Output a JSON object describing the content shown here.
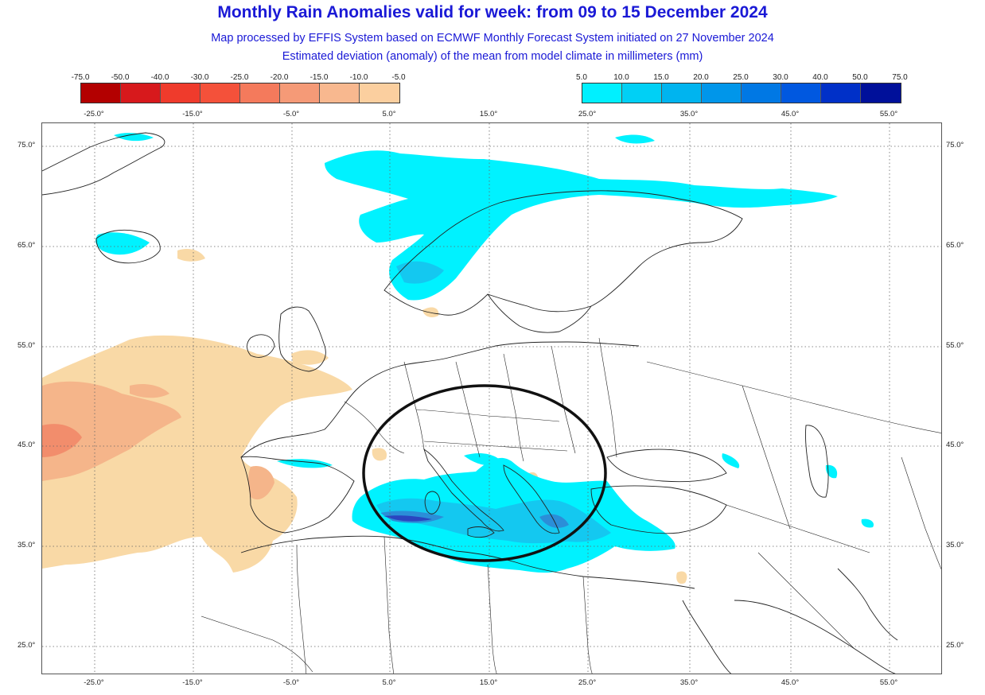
{
  "header": {
    "title": "Monthly Rain Anomalies valid for week: from 09 to 15 December 2024",
    "subtitle_1": "Map processed by EFFIS System based on ECMWF Monthly Forecast System initiated on 27 November 2024",
    "subtitle_2": "Estimated deviation (anomaly) of the mean from model climate in millimeters (mm)"
  },
  "legend_negative": {
    "labels": [
      "-75.0",
      "-50.0",
      "-40.0",
      "-30.0",
      "-25.0",
      "-20.0",
      "-15.0",
      "-10.0",
      "-5.0"
    ],
    "colors": [
      "#b30000",
      "#d7191c",
      "#ef3b2c",
      "#f4513a",
      "#f47a5c",
      "#f59a77",
      "#f8b88f",
      "#fbcf9f"
    ]
  },
  "legend_positive": {
    "labels": [
      "5.0",
      "10.0",
      "15.0",
      "20.0",
      "25.0",
      "30.0",
      "40.0",
      "50.0",
      "75.0"
    ],
    "colors": [
      "#00f0ff",
      "#00d0f5",
      "#00b4ef",
      "#0096ea",
      "#0078e4",
      "#0058e0",
      "#0030c8",
      "#00109a"
    ]
  },
  "axes": {
    "lon_top": [
      "-25.0°",
      "-15.0°",
      "-5.0°",
      "5.0°",
      "15.0°",
      "25.0°",
      "35.0°",
      "45.0°",
      "55.0°"
    ],
    "lon_bottom": [
      "-25.0°",
      "-15.0°",
      "-5.0°",
      "5.0°",
      "15.0°",
      "25.0°",
      "35.0°",
      "45.0°",
      "55.0°"
    ],
    "lat_left": [
      "75.0°",
      "65.0°",
      "55.0°",
      "45.0°",
      "35.0°",
      "25.0°"
    ],
    "lat_right": [
      "75.0°",
      "65.0°",
      "55.0°",
      "45.0°",
      "35.0°",
      "25.0°"
    ]
  },
  "map": {
    "land_fill": "#ffffff",
    "coast_color": "#222222",
    "grid_color": "#666666",
    "dry_light": "#f9d9a6",
    "dry_medium": "#f5b58a",
    "dry_strong": "#f28d6c",
    "wet_light": "#00f2ff",
    "wet_medium": "#14c8f0",
    "wet_strong": "#2b8ed8",
    "wet_max": "#2a45c0",
    "highlight_circle_color": "#111111"
  }
}
